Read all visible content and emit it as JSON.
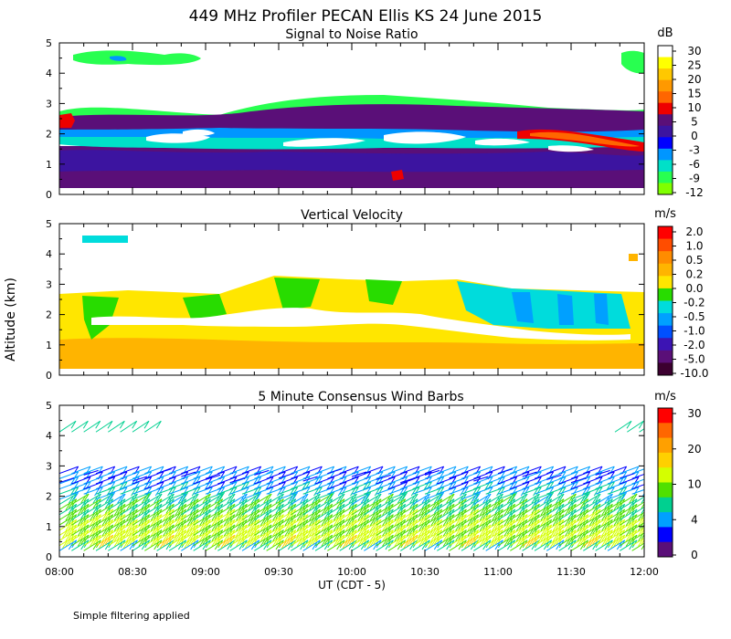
{
  "figure": {
    "title": "449 MHz Profiler PECAN Ellis KS 24 June 2015",
    "ylabel": "Altitude (km)",
    "xlabel": "UT  (CDT - 5)",
    "x_ticks": [
      "08:00",
      "08:30",
      "09:00",
      "09:30",
      "10:00",
      "10:30",
      "11:00",
      "11:30",
      "12:00"
    ],
    "y_ticks": [
      "0",
      "1",
      "2",
      "3",
      "4",
      "5"
    ],
    "footnote": "Simple filtering applied"
  },
  "chart_data": [
    {
      "type": "heatmap",
      "title": "Signal to Noise Ratio",
      "x_range_hours": [
        8.0,
        12.0
      ],
      "ylim": [
        0,
        5
      ],
      "colorbar": {
        "unit": "dB",
        "labels": [
          "30",
          "25",
          "20",
          "15",
          "10",
          "5",
          "0",
          "-3",
          "-6",
          "-9",
          "-12"
        ],
        "colors": [
          "#ffffff",
          "#ffff00",
          "#ffc800",
          "#ff9900",
          "#ff6600",
          "#ee0000",
          "#5a0f78",
          "#3c14a0",
          "#0000ff",
          "#0096ff",
          "#00e0c8",
          "#28ff50",
          "#80ff00"
        ]
      },
      "bands": [
        {
          "name": "clear-air upper",
          "x": [
            8.0,
            9.0,
            9.5,
            10.0,
            10.5,
            11.0,
            11.5,
            12.0
          ],
          "y_top": [
            3.0,
            2.9,
            3.3,
            3.2,
            3.3,
            3.1,
            2.9,
            2.9
          ],
          "y_bottom": [
            0.25,
            0.25,
            0.25,
            0.25,
            0.25,
            0.25,
            0.25,
            0.25
          ]
        },
        {
          "name": "white high-SNR layer",
          "x": [
            8.5,
            9.0,
            9.5,
            10.0,
            10.5,
            11.0,
            11.5
          ],
          "y_center": [
            1.85,
            1.9,
            1.7,
            1.8,
            1.8,
            1.6,
            1.5
          ]
        },
        {
          "name": "red high-SNR layer",
          "x": [
            11.1,
            11.5,
            12.0
          ],
          "y_center": [
            2.05,
            1.85,
            1.6
          ]
        }
      ],
      "cloud_echo": {
        "x_range": [
          8.1,
          9.2
        ],
        "altitude": [
          4.3,
          4.9
        ]
      }
    },
    {
      "type": "heatmap",
      "title": "Vertical Velocity",
      "x_range_hours": [
        8.0,
        12.0
      ],
      "ylim": [
        0,
        5
      ],
      "colorbar": {
        "unit": "m/s",
        "labels": [
          "2.0",
          "1.0",
          "0.5",
          "0.2",
          "0.0",
          "-0.2",
          "-0.5",
          "-1.0",
          "-2.0",
          "-5.0",
          "-10.0"
        ],
        "colors": [
          "#ff0000",
          "#ff4d00",
          "#ff8c00",
          "#ffb400",
          "#ffe600",
          "#28dc00",
          "#00dcdc",
          "#00a0ff",
          "#0050ff",
          "#3c14b4",
          "#5a0f78",
          "#3c0030"
        ]
      },
      "data_top_km": [
        2.9,
        2.8,
        3.3,
        3.2,
        3.2,
        2.8,
        2.8
      ],
      "data_top_x": [
        8.0,
        9.0,
        9.5,
        10.0,
        10.5,
        11.5,
        12.0
      ],
      "dominant_below_1_5km": "0.2",
      "dominant_above_2km_after_10_30": "-0.5"
    },
    {
      "type": "wind_barbs",
      "title": "5 Minute Consensus Wind Barbs",
      "x_range_hours": [
        8.0,
        12.0
      ],
      "ylim": [
        0,
        5
      ],
      "interval_minutes": 5,
      "colorbar": {
        "unit": "m/s",
        "labels": [
          "30",
          "20",
          "10",
          "4",
          "0"
        ],
        "colors": [
          "#ff0000",
          "#ff6600",
          "#ffa000",
          "#ffd000",
          "#d4ff00",
          "#50e000",
          "#00d090",
          "#00a0ff",
          "#0000ff",
          "#5a0f78"
        ]
      },
      "speed_profile": [
        {
          "altitude": 0.25,
          "speed": 17
        },
        {
          "altitude": 1.0,
          "speed": 15
        },
        {
          "altitude": 1.6,
          "speed": 11
        },
        {
          "altitude": 2.2,
          "speed": 7
        },
        {
          "altitude": 2.6,
          "speed": 5
        },
        {
          "altitude": 4.3,
          "speed": 10
        }
      ]
    }
  ]
}
